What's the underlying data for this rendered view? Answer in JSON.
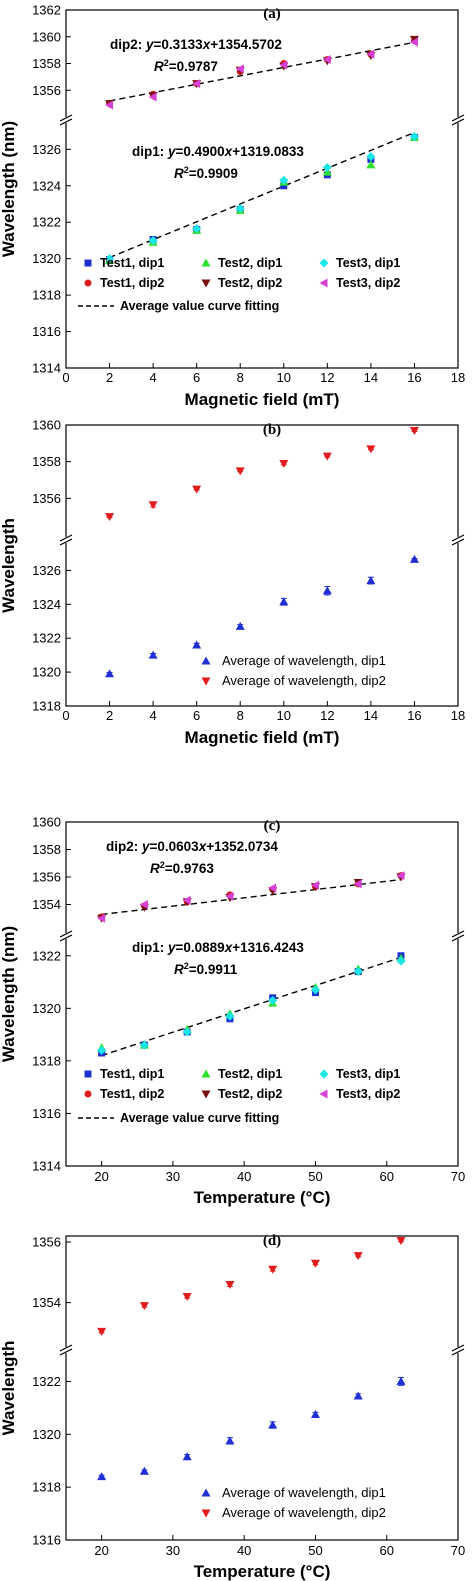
{
  "chart_data": [
    {
      "type": "scatter",
      "panel_label": "(a)",
      "xlabel": "Magnetic field (mT)",
      "ylabel": "Wavelength (nm)",
      "xlim": [
        0,
        18
      ],
      "xticks": [
        0,
        2,
        4,
        6,
        8,
        10,
        12,
        14,
        16,
        18
      ],
      "broken_y_axis": true,
      "ylim_lower": [
        1314,
        1327.5
      ],
      "yticks_lower": [
        1314,
        1316,
        1318,
        1320,
        1322,
        1324,
        1326
      ],
      "ylim_upper": [
        1354,
        1362
      ],
      "yticks_upper": [
        1356,
        1358,
        1360,
        1362
      ],
      "grid": false,
      "legend_position": "bottom",
      "x": [
        2,
        4,
        6,
        8,
        10,
        12,
        14,
        16
      ],
      "series": [
        {
          "name": "Test1, dip1",
          "color": "#1f2fd4",
          "marker": "square",
          "segment": "lower",
          "values": [
            1319.95,
            1321.05,
            1321.6,
            1322.7,
            1324.0,
            1324.6,
            1325.45,
            1326.65
          ]
        },
        {
          "name": "Test2, dip1",
          "color": "#2ee02e",
          "marker": "triangle-up",
          "segment": "lower",
          "values": [
            1319.9,
            1320.9,
            1321.55,
            1322.65,
            1324.2,
            1324.75,
            1325.15,
            1326.65
          ]
        },
        {
          "name": "Test3, dip1",
          "color": "#19e6e6",
          "marker": "diamond",
          "segment": "lower",
          "values": [
            1320.0,
            1321.0,
            1321.65,
            1322.75,
            1324.3,
            1325.0,
            1325.6,
            1326.7
          ]
        },
        {
          "name": "Test1, dip2",
          "color": "#e01c1c",
          "marker": "circle",
          "segment": "upper",
          "values": [
            1355.0,
            1355.7,
            1356.5,
            1357.4,
            1358.0,
            1358.3,
            1358.7,
            1359.7
          ]
        },
        {
          "name": "Test2, dip2",
          "color": "#7a1010",
          "marker": "triangle-down",
          "segment": "upper",
          "values": [
            1355.0,
            1355.6,
            1356.5,
            1357.5,
            1357.8,
            1358.2,
            1358.6,
            1359.8
          ]
        },
        {
          "name": "Test3, dip2",
          "color": "#d640d6",
          "marker": "triangle-left",
          "segment": "upper",
          "values": [
            1354.9,
            1355.5,
            1356.5,
            1357.6,
            1357.9,
            1358.3,
            1358.7,
            1359.6
          ]
        }
      ],
      "fits": [
        {
          "name": "Average value curve fitting",
          "segment": "upper",
          "slope": 0.3133,
          "intercept": 1354.5702,
          "x_range": [
            2,
            16
          ]
        },
        {
          "name": "Average value curve fitting",
          "segment": "lower",
          "slope": 0.49,
          "intercept": 1319.0833,
          "x_range": [
            2,
            16
          ]
        }
      ],
      "annotations": [
        {
          "label": "dip2: ",
          "var": "y",
          "eq": "=0.3133",
          "xvar": "x",
          "tail": "+1354.5702",
          "r2": "=0.9787"
        },
        {
          "label": "dip1: ",
          "var": "y",
          "eq": "=0.4900",
          "xvar": "x",
          "tail": "+1319.0833",
          "r2": "=0.9909"
        }
      ],
      "legend": [
        {
          "text": "Test1, dip1",
          "color": "#1f2fd4",
          "marker": "square"
        },
        {
          "text": "Test2, dip1",
          "color": "#2ee02e",
          "marker": "triangle-up"
        },
        {
          "text": "Test3, dip1",
          "color": "#19e6e6",
          "marker": "diamond"
        },
        {
          "text": "Test1, dip2",
          "color": "#e01c1c",
          "marker": "circle"
        },
        {
          "text": "Test2, dip2",
          "color": "#7a1010",
          "marker": "triangle-down"
        },
        {
          "text": "Test3, dip2",
          "color": "#d640d6",
          "marker": "triangle-left"
        },
        {
          "text": "Average value curve fitting",
          "color": "#000000",
          "marker": "dash"
        }
      ]
    },
    {
      "type": "scatter",
      "panel_label": "(b)",
      "xlabel": "Magnetic field (mT)",
      "ylabel": "Wavelength",
      "xlim": [
        0,
        18
      ],
      "xticks": [
        0,
        2,
        4,
        6,
        8,
        10,
        12,
        14,
        16,
        18
      ],
      "broken_y_axis": true,
      "ylim_lower": [
        1318,
        1327.5
      ],
      "yticks_lower": [
        1318,
        1320,
        1322,
        1324,
        1326
      ],
      "ylim_upper": [
        1354,
        1360
      ],
      "yticks_upper": [
        1356,
        1358,
        1360
      ],
      "grid": false,
      "legend_position": "bottom-right",
      "x": [
        2,
        4,
        6,
        8,
        10,
        12,
        14,
        16
      ],
      "series": [
        {
          "name": "Average of wavelength, dip1",
          "color": "#1f2fd4",
          "marker": "triangle-up",
          "segment": "lower",
          "values": [
            1319.9,
            1321.0,
            1321.6,
            1322.7,
            1324.15,
            1324.8,
            1325.4,
            1326.65
          ],
          "errors": [
            0.08,
            0.1,
            0.1,
            0.1,
            0.2,
            0.25,
            0.2,
            0.05
          ]
        },
        {
          "name": "Average of wavelength, dip2",
          "color": "#e01c1c",
          "marker": "triangle-down",
          "segment": "upper",
          "values": [
            1355.0,
            1355.65,
            1356.5,
            1357.5,
            1357.9,
            1358.3,
            1358.7,
            1359.7
          ],
          "errors": [
            0.05,
            0.12,
            0.05,
            0.05,
            0.08,
            0.05,
            0.05,
            0.05
          ]
        }
      ],
      "legend": [
        {
          "text": "Average of wavelength, dip1",
          "color": "#1f2fd4",
          "marker": "triangle-up"
        },
        {
          "text": "Average of wavelength, dip2",
          "color": "#e01c1c",
          "marker": "triangle-down"
        }
      ]
    },
    {
      "type": "scatter",
      "panel_label": "(c)",
      "xlabel": "Temperature (°C)",
      "ylabel": "Wavelength (nm)",
      "xlim": [
        15,
        70
      ],
      "xticks": [
        20,
        30,
        40,
        50,
        60,
        70
      ],
      "broken_y_axis": true,
      "ylim_lower": [
        1314,
        1322.6
      ],
      "yticks_lower": [
        1314,
        1316,
        1318,
        1320,
        1322
      ],
      "ylim_upper": [
        1352,
        1360
      ],
      "yticks_upper": [
        1354,
        1356,
        1358,
        1360
      ],
      "grid": false,
      "legend_position": "bottom",
      "x": [
        20,
        26,
        32,
        38,
        44,
        50,
        56,
        62
      ],
      "series": [
        {
          "name": "Test1, dip1",
          "color": "#1f2fd4",
          "marker": "square",
          "segment": "lower",
          "values": [
            1318.3,
            1318.6,
            1319.1,
            1319.6,
            1320.4,
            1320.6,
            1321.4,
            1322.0
          ]
        },
        {
          "name": "Test2, dip1",
          "color": "#2ee02e",
          "marker": "triangle-up",
          "segment": "lower",
          "values": [
            1318.5,
            1318.6,
            1319.2,
            1319.8,
            1320.2,
            1320.8,
            1321.5,
            1321.9
          ]
        },
        {
          "name": "Test3, dip1",
          "color": "#19e6e6",
          "marker": "diamond",
          "segment": "lower",
          "values": [
            1318.4,
            1318.6,
            1319.1,
            1319.7,
            1320.3,
            1320.7,
            1321.4,
            1321.8
          ]
        },
        {
          "name": "Test1, dip2",
          "color": "#e01c1c",
          "marker": "circle",
          "segment": "upper",
          "values": [
            1353.1,
            1353.9,
            1354.2,
            1354.7,
            1355.1,
            1355.3,
            1355.5,
            1356.1
          ]
        },
        {
          "name": "Test2, dip2",
          "color": "#7a1010",
          "marker": "triangle-down",
          "segment": "upper",
          "values": [
            1353.0,
            1353.8,
            1354.2,
            1354.5,
            1355.0,
            1355.3,
            1355.6,
            1356.0
          ]
        },
        {
          "name": "Test3, dip2",
          "color": "#d640d6",
          "marker": "triangle-left",
          "segment": "upper",
          "values": [
            1353.0,
            1354.0,
            1354.3,
            1354.6,
            1355.2,
            1355.4,
            1355.5,
            1356.1
          ]
        }
      ],
      "fits": [
        {
          "name": "Average value curve fitting",
          "segment": "upper",
          "slope": 0.0603,
          "intercept": 1352.0734,
          "x_range": [
            20,
            62
          ]
        },
        {
          "name": "Average value curve fitting",
          "segment": "lower",
          "slope": 0.0889,
          "intercept": 1316.4243,
          "x_range": [
            20,
            62
          ]
        }
      ],
      "annotations": [
        {
          "label": "dip2: ",
          "var": "y",
          "eq": "=0.0603",
          "xvar": "x",
          "tail": "+1352.0734",
          "r2": "=0.9763"
        },
        {
          "label": "dip1: ",
          "var": "y",
          "eq": "=0.0889",
          "xvar": "x",
          "tail": "+1316.4243",
          "r2": "=0.9911"
        }
      ],
      "legend": [
        {
          "text": "Test1, dip1",
          "color": "#1f2fd4",
          "marker": "square"
        },
        {
          "text": "Test2, dip1",
          "color": "#2ee02e",
          "marker": "triangle-up"
        },
        {
          "text": "Test3, dip1",
          "color": "#19e6e6",
          "marker": "diamond"
        },
        {
          "text": "Test1, dip2",
          "color": "#e01c1c",
          "marker": "circle"
        },
        {
          "text": "Test2, dip2",
          "color": "#7a1010",
          "marker": "triangle-down"
        },
        {
          "text": "Test3, dip2",
          "color": "#d640d6",
          "marker": "triangle-left"
        },
        {
          "text": "Average value curve fitting",
          "color": "#000000",
          "marker": "dash"
        }
      ]
    },
    {
      "type": "scatter",
      "panel_label": "(d)",
      "xlabel": "Temperature (°C)",
      "ylabel": "Wavelength",
      "xlim": [
        15,
        70
      ],
      "xticks": [
        20,
        30,
        40,
        50,
        60,
        70
      ],
      "broken_y_axis": true,
      "ylim_lower": [
        1316,
        1323
      ],
      "yticks_lower": [
        1316,
        1318,
        1320,
        1322
      ],
      "ylim_upper": [
        1352.6,
        1356.2
      ],
      "yticks_upper": [
        1354,
        1356
      ],
      "grid": false,
      "legend_position": "bottom-right",
      "x": [
        20,
        26,
        32,
        38,
        44,
        50,
        56,
        62
      ],
      "series": [
        {
          "name": "Average of wavelength, dip1",
          "color": "#1f2fd4",
          "marker": "triangle-up",
          "segment": "lower",
          "values": [
            1318.4,
            1318.6,
            1319.15,
            1319.75,
            1320.35,
            1320.75,
            1321.45,
            1322.0
          ],
          "errors": [
            0.05,
            0.05,
            0.08,
            0.12,
            0.12,
            0.08,
            0.08,
            0.15
          ]
        },
        {
          "name": "Average of wavelength, dip2",
          "color": "#e01c1c",
          "marker": "triangle-down",
          "segment": "upper",
          "values": [
            1353.05,
            1353.9,
            1354.2,
            1354.6,
            1355.1,
            1355.3,
            1355.55,
            1356.05
          ],
          "errors": [
            0.05,
            0.05,
            0.05,
            0.06,
            0.06,
            0.05,
            0.04,
            0.04
          ]
        }
      ],
      "legend": [
        {
          "text": "Average of wavelength, dip1",
          "color": "#1f2fd4",
          "marker": "triangle-up"
        },
        {
          "text": "Average of wavelength, dip2",
          "color": "#e01c1c",
          "marker": "triangle-down"
        }
      ]
    }
  ]
}
